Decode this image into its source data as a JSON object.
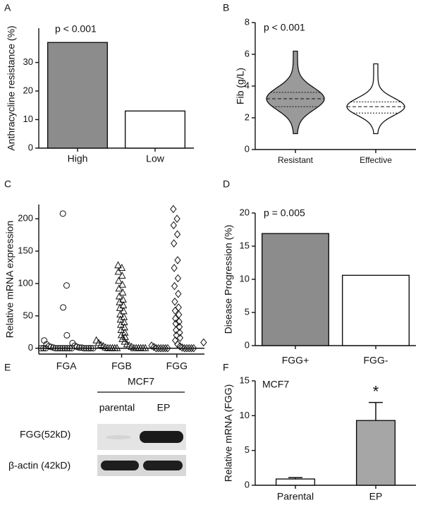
{
  "panel_labels": [
    "A",
    "B",
    "C",
    "D",
    "E",
    "F"
  ],
  "chart_data": [
    {
      "type": "bar",
      "y_label": "Anthracycline resistance (%)",
      "annotation": "p < 0.001",
      "categories": [
        "High",
        "Low"
      ],
      "values": [
        37,
        13
      ],
      "colors": [
        "#8c8c8c",
        "#ffffff"
      ],
      "ylim": [
        0,
        42
      ],
      "yticks": [
        0,
        10,
        20,
        30
      ]
    },
    {
      "type": "violin",
      "y_label": "Fib (g/L)",
      "annotation": "p < 0.001",
      "categories": [
        "Resistant",
        "Effective"
      ],
      "colors": [
        "#9a9a9a",
        "#ffffff"
      ],
      "min": [
        1.0,
        1.0
      ],
      "q1": [
        2.7,
        2.3
      ],
      "median": [
        3.2,
        2.7
      ],
      "q3": [
        3.6,
        3.0
      ],
      "max": [
        6.2,
        5.4
      ],
      "ylim": [
        0,
        8
      ],
      "yticks": [
        0,
        2,
        4,
        6,
        8
      ]
    },
    {
      "type": "strip",
      "y_label": "Relative mRNA expression",
      "categories": [
        "FGA",
        "FGB",
        "FGG"
      ],
      "markers": [
        "circle",
        "triangle",
        "diamond"
      ],
      "values": [
        [
          208,
          97,
          63,
          20,
          12,
          8,
          6,
          4,
          3,
          2,
          2,
          1,
          1,
          1,
          0,
          0,
          0,
          0,
          0,
          0,
          0,
          0,
          0,
          0,
          0,
          0,
          0,
          0,
          0,
          0
        ],
        [
          128,
          124,
          118,
          112,
          104,
          98,
          92,
          86,
          80,
          75,
          71,
          66,
          62,
          57,
          52,
          48,
          44,
          40,
          36,
          32,
          28,
          24,
          20,
          17,
          14,
          12,
          10,
          8,
          6,
          5,
          4,
          3,
          2,
          1,
          0,
          0,
          0,
          0,
          0,
          0,
          0,
          0,
          0,
          0,
          0
        ],
        [
          215,
          200,
          190,
          176,
          162,
          136,
          124,
          108,
          96,
          84,
          72,
          63,
          58,
          52,
          46,
          41,
          38,
          33,
          28,
          24,
          20,
          16,
          12,
          9,
          6,
          4,
          3,
          2,
          1,
          0,
          0,
          0,
          0,
          0,
          0,
          0,
          0,
          0,
          0,
          0
        ]
      ],
      "ylim": [
        -9,
        222
      ],
      "yticks": [
        0,
        50,
        100,
        150,
        200
      ]
    },
    {
      "type": "bar",
      "y_label": "Disease Progression (%)",
      "annotation": "p = 0.005",
      "categories": [
        "FGG+",
        "FGG-"
      ],
      "values": [
        16.9,
        10.6
      ],
      "colors": [
        "#8c8c8c",
        "#ffffff"
      ],
      "ylim": [
        0,
        20
      ],
      "yticks": [
        0,
        5,
        10,
        15,
        20
      ]
    },
    {
      "type": "bar",
      "y_label": "Relative mRNA (FGG)",
      "annotation": "MCF7",
      "categories": [
        "Parental",
        "EP"
      ],
      "values": [
        0.9,
        9.3
      ],
      "errors": [
        0.2,
        2.6
      ],
      "significance": [
        null,
        "*"
      ],
      "colors": [
        "#ffffff",
        "#a6a6a6"
      ],
      "ylim": [
        0,
        15
      ],
      "yticks": [
        0,
        5,
        10,
        15
      ]
    }
  ],
  "blot": {
    "cell_line": "MCF7",
    "lanes": [
      "parental",
      "EP"
    ],
    "rows": [
      "FGG(52kD)",
      "β-actin (42kD)"
    ]
  }
}
